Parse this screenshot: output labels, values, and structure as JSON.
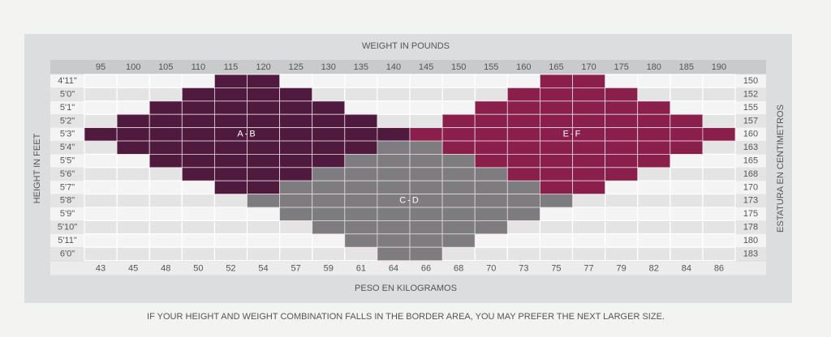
{
  "title": "WEIGHT IN POUNDS",
  "bottom_title": "PESO EN KILOGRAMOS",
  "left_title": "HEIGHT IN FEET",
  "right_title": "ESTATURA EN CENTIMETROS",
  "footnote": "IF YOUR HEIGHT AND WEIGHT COMBINATION FALLS IN THE BORDER AREA, YOU MAY PREFER THE NEXT LARGER SIZE.",
  "pounds": [
    "95",
    "100",
    "105",
    "110",
    "115",
    "120",
    "125",
    "130",
    "135",
    "140",
    "145",
    "150",
    "155",
    "160",
    "165",
    "170",
    "175",
    "180",
    "185",
    "190"
  ],
  "kilograms": [
    "43",
    "45",
    "48",
    "50",
    "52",
    "54",
    "57",
    "59",
    "61",
    "64",
    "66",
    "68",
    "70",
    "73",
    "75",
    "77",
    "79",
    "82",
    "84",
    "86"
  ],
  "heights": [
    "4'11\"",
    "5'0\"",
    "5'1\"",
    "5'2\"",
    "5'3\"",
    "5'4\"",
    "5'5\"",
    "5'6\"",
    "5'7\"",
    "5'8\"",
    "5'9\"",
    "5'10\"",
    "5'11\"",
    "6'0\""
  ],
  "centimeters": [
    "150",
    "152",
    "155",
    "157",
    "160",
    "163",
    "165",
    "168",
    "170",
    "173",
    "175",
    "178",
    "180",
    "183"
  ],
  "regions": [
    {
      "label": "A-B",
      "color": "#4f1a3d",
      "spans": [
        [
          0,
          4,
          5
        ],
        [
          1,
          3,
          6
        ],
        [
          2,
          2,
          7
        ],
        [
          3,
          1,
          8
        ],
        [
          4,
          0,
          9
        ],
        [
          5,
          1,
          8
        ],
        [
          6,
          2,
          7
        ],
        [
          7,
          3,
          6
        ],
        [
          8,
          4,
          5
        ]
      ]
    },
    {
      "label": "C-D",
      "color": "#7d7d80",
      "spans": [
        [
          5,
          9,
          10
        ],
        [
          6,
          8,
          11
        ],
        [
          7,
          7,
          12
        ],
        [
          8,
          6,
          13
        ],
        [
          9,
          5,
          14
        ],
        [
          10,
          6,
          13
        ],
        [
          11,
          7,
          12
        ],
        [
          12,
          8,
          11
        ],
        [
          13,
          9,
          10
        ]
      ]
    },
    {
      "label": "E-F",
      "color": "#8b1f4b",
      "spans": [
        [
          0,
          14,
          15
        ],
        [
          1,
          13,
          16
        ],
        [
          2,
          12,
          17
        ],
        [
          3,
          11,
          18
        ],
        [
          4,
          10,
          19
        ],
        [
          5,
          11,
          18
        ],
        [
          6,
          12,
          17
        ],
        [
          7,
          13,
          16
        ],
        [
          8,
          14,
          15
        ]
      ]
    }
  ]
}
